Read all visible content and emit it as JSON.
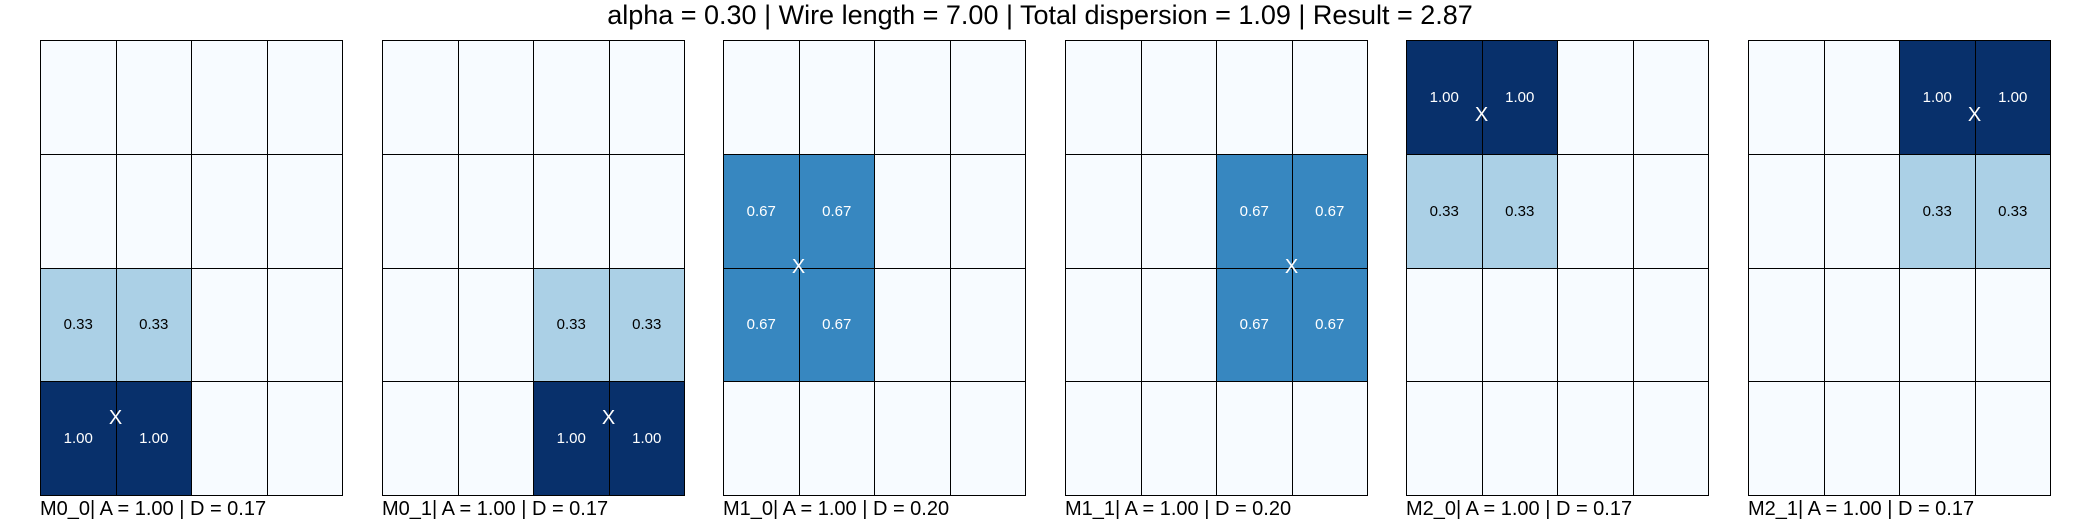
{
  "title": "alpha = 0.30 | Wire length = 7.00 | Total dispersion = 1.09 | Result = 2.87",
  "colors": {
    "empty": "#f7fbff",
    "v033": "#abd0e6",
    "v067": "#3787c0",
    "v100": "#08306b",
    "grid_line": "#000000",
    "marker": "#ffffff"
  },
  "chart_data": [
    {
      "type": "heatmap",
      "caption": "M0_0| A = 1.00 | D = 0.17",
      "rows": 4,
      "cols": 4,
      "values": [
        [
          0,
          0,
          0,
          0
        ],
        [
          0,
          0,
          0,
          0
        ],
        [
          0.33,
          0.33,
          0,
          0
        ],
        [
          1.0,
          1.0,
          0,
          0
        ]
      ],
      "labels": [
        [
          "",
          "",
          "",
          ""
        ],
        [
          "",
          "",
          "",
          ""
        ],
        [
          "0.33",
          "0.33",
          "",
          ""
        ],
        [
          "1.00",
          "1.00",
          "",
          ""
        ]
      ],
      "marker": {
        "label": "X",
        "col": 1.0,
        "row": 3.33
      }
    },
    {
      "type": "heatmap",
      "caption": "M0_1| A = 1.00 | D = 0.17",
      "rows": 4,
      "cols": 4,
      "values": [
        [
          0,
          0,
          0,
          0
        ],
        [
          0,
          0,
          0,
          0
        ],
        [
          0,
          0,
          0.33,
          0.33
        ],
        [
          0,
          0,
          1.0,
          1.0
        ]
      ],
      "labels": [
        [
          "",
          "",
          "",
          ""
        ],
        [
          "",
          "",
          "",
          ""
        ],
        [
          "",
          "",
          "0.33",
          "0.33"
        ],
        [
          "",
          "",
          "1.00",
          "1.00"
        ]
      ],
      "marker": {
        "label": "X",
        "col": 3.0,
        "row": 3.33
      }
    },
    {
      "type": "heatmap",
      "caption": "M1_0| A = 1.00 | D = 0.20",
      "rows": 4,
      "cols": 4,
      "values": [
        [
          0,
          0,
          0,
          0
        ],
        [
          0.67,
          0.67,
          0,
          0
        ],
        [
          0.67,
          0.67,
          0,
          0
        ],
        [
          0,
          0,
          0,
          0
        ]
      ],
      "labels": [
        [
          "",
          "",
          "",
          ""
        ],
        [
          "0.67",
          "0.67",
          "",
          ""
        ],
        [
          "0.67",
          "0.67",
          "",
          ""
        ],
        [
          "",
          "",
          "",
          ""
        ]
      ],
      "marker": {
        "label": "X",
        "col": 1.0,
        "row": 2.0
      }
    },
    {
      "type": "heatmap",
      "caption": "M1_1| A = 1.00 | D = 0.20",
      "rows": 4,
      "cols": 4,
      "values": [
        [
          0,
          0,
          0,
          0
        ],
        [
          0,
          0,
          0.67,
          0.67
        ],
        [
          0,
          0,
          0.67,
          0.67
        ],
        [
          0,
          0,
          0,
          0
        ]
      ],
      "labels": [
        [
          "",
          "",
          "",
          ""
        ],
        [
          "",
          "",
          "0.67",
          "0.67"
        ],
        [
          "",
          "",
          "0.67",
          "0.67"
        ],
        [
          "",
          "",
          "",
          ""
        ]
      ],
      "marker": {
        "label": "X",
        "col": 3.0,
        "row": 2.0
      }
    },
    {
      "type": "heatmap",
      "caption": "M2_0| A = 1.00 | D = 0.17",
      "rows": 4,
      "cols": 4,
      "values": [
        [
          1.0,
          1.0,
          0,
          0
        ],
        [
          0.33,
          0.33,
          0,
          0
        ],
        [
          0,
          0,
          0,
          0
        ],
        [
          0,
          0,
          0,
          0
        ]
      ],
      "labels": [
        [
          "1.00",
          "1.00",
          "",
          ""
        ],
        [
          "0.33",
          "0.33",
          "",
          ""
        ],
        [
          "",
          "",
          "",
          ""
        ],
        [
          "",
          "",
          "",
          ""
        ]
      ],
      "marker": {
        "label": "X",
        "col": 1.0,
        "row": 0.67
      }
    },
    {
      "type": "heatmap",
      "caption": "M2_1| A = 1.00 | D = 0.17",
      "rows": 4,
      "cols": 4,
      "values": [
        [
          0,
          0,
          1.0,
          1.0
        ],
        [
          0,
          0,
          0.33,
          0.33
        ],
        [
          0,
          0,
          0,
          0
        ],
        [
          0,
          0,
          0,
          0
        ]
      ],
      "labels": [
        [
          "",
          "",
          "1.00",
          "1.00"
        ],
        [
          "",
          "",
          "0.33",
          "0.33"
        ],
        [
          "",
          "",
          "",
          ""
        ],
        [
          "",
          "",
          "",
          ""
        ]
      ],
      "marker": {
        "label": "X",
        "col": 3.0,
        "row": 0.67
      }
    }
  ]
}
